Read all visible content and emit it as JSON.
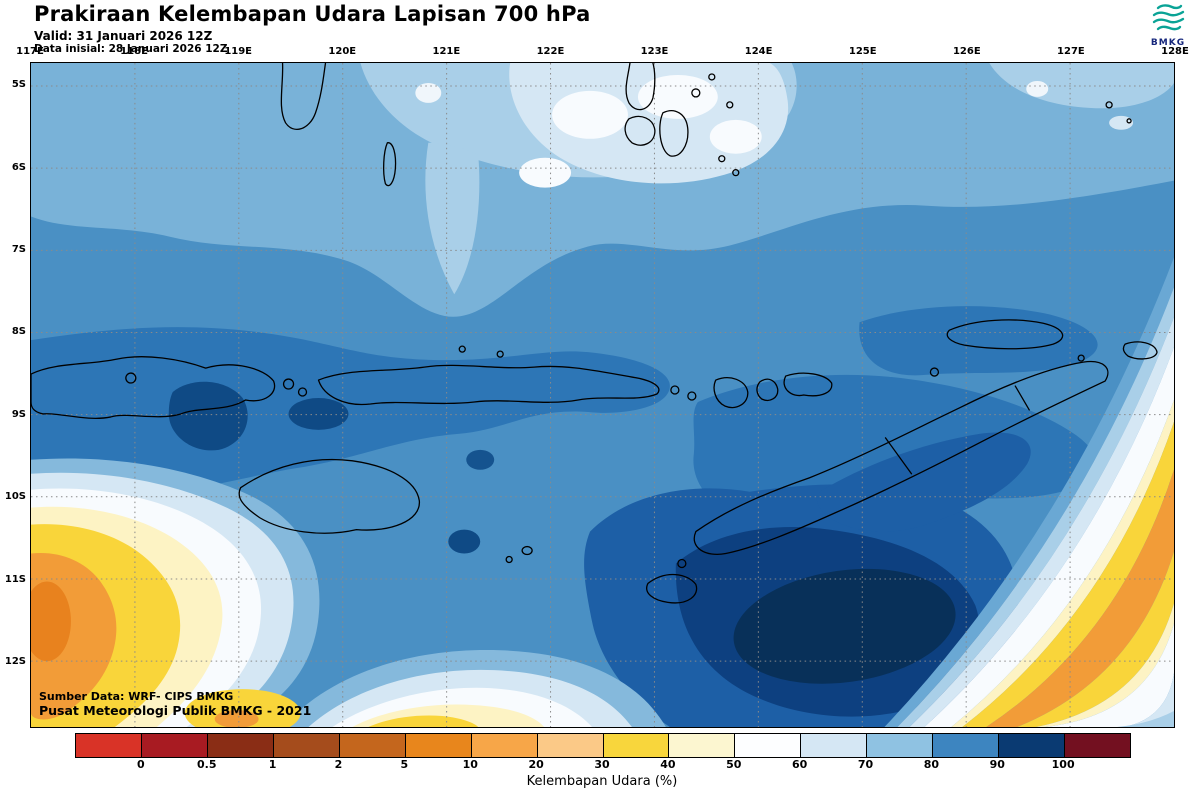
{
  "header": {
    "title": "Prakiraan Kelembapan Udara Lapisan 700 hPa",
    "valid_line": "Valid: 31 Januari 2026 12Z",
    "init_line": "Data inisial: 28 Januari 2026 12Z"
  },
  "logo": {
    "text": "BMKG",
    "icon_color": "#0aa396",
    "text_color": "#16277c"
  },
  "map": {
    "x_ticks": [
      "117E",
      "118E",
      "119E",
      "120E",
      "121E",
      "122E",
      "123E",
      "124E",
      "125E",
      "126E",
      "127E",
      "128E"
    ],
    "y_ticks": [
      "5S",
      "6S",
      "7S",
      "8S",
      "9S",
      "10S",
      "11S",
      "12S"
    ],
    "source_line1": "Sumber Data: WRF- CIPS BMKG",
    "source_line2": "Pusat Meteorologi Publik BMKG - 2021"
  },
  "colorbar": {
    "label": "Kelembapan Udara (%)",
    "tick_labels": [
      "0",
      "0.5",
      "1",
      "2",
      "5",
      "10",
      "20",
      "30",
      "40",
      "50",
      "60",
      "70",
      "80",
      "90",
      "100"
    ],
    "segment_colors": [
      "#d93327",
      "#a81b22",
      "#8a2d15",
      "#a54c1c",
      "#c4661d",
      "#e8861c",
      "#f7a648",
      "#fbc987",
      "#f8d63c",
      "#fcf6d0",
      "#fdfeff",
      "#d5e7f4",
      "#8fc2e2",
      "#3d85c0",
      "#0a3a72",
      "#731020"
    ]
  }
}
